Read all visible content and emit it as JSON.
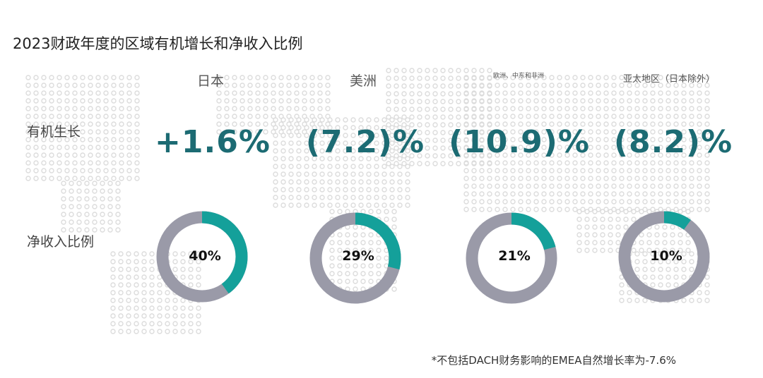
{
  "title": "2023财政年度的区域有机增长和净收入比例",
  "row_labels": {
    "growth": "有机生长",
    "share": "净收入比例"
  },
  "colors": {
    "accent": "#14a09a",
    "ring": "#9a9aa8",
    "growth_text": "#1c6b73",
    "map_dot": "#dcdcdc"
  },
  "chart_data": {
    "type": "pie",
    "categories": [
      "日本",
      "美洲",
      "欧洲、中东和非洲",
      "亚太地区（日本除外）"
    ],
    "organic_growth_labels": [
      "+1.6%",
      "(7.2)%",
      "(10.9)%",
      "(8.2)%"
    ],
    "organic_growth_pct": [
      1.6,
      -7.2,
      -10.9,
      -8.2
    ],
    "net_revenue_share_labels": [
      "40%",
      "29%",
      "21%",
      "10%"
    ],
    "net_revenue_share_pct": [
      40,
      29,
      21,
      10
    ]
  },
  "footnote": "*不包括DACH财务影响的EMEA自然增长率为-7.6%"
}
